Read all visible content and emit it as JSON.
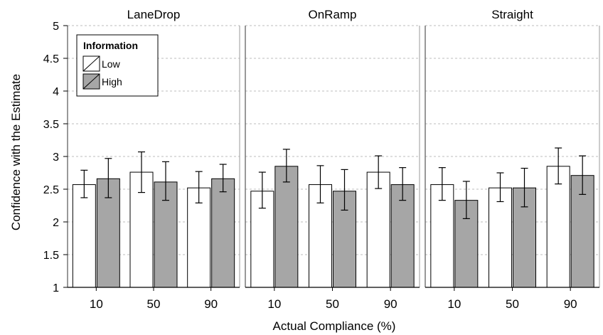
{
  "chart_data": {
    "type": "bar",
    "ylabel": "Confidence with the Estimate",
    "xlabel": "Actual Compliance (%)",
    "ylim": [
      1,
      5
    ],
    "yticks": [
      "1",
      "1.5",
      "2",
      "2.5",
      "3",
      "3.5",
      "4",
      "4.5",
      "5"
    ],
    "grid": true,
    "categories": [
      "10",
      "50",
      "90"
    ],
    "legend": {
      "title": "Information",
      "placement": "top-left",
      "entries": [
        "Low",
        "High"
      ]
    },
    "colors": {
      "Low": "#ffffff",
      "High": "#a6a6a6"
    },
    "facets": [
      {
        "title": "LaneDrop",
        "series": [
          {
            "name": "Low",
            "values": [
              2.57,
              2.76,
              2.52
            ],
            "err_low": [
              2.37,
              2.45,
              2.29
            ],
            "err_high": [
              2.79,
              3.07,
              2.77
            ]
          },
          {
            "name": "High",
            "values": [
              2.66,
              2.61,
              2.66
            ],
            "err_low": [
              2.37,
              2.33,
              2.46
            ],
            "err_high": [
              2.97,
              2.92,
              2.88
            ]
          }
        ]
      },
      {
        "title": "OnRamp",
        "series": [
          {
            "name": "Low",
            "values": [
              2.47,
              2.57,
              2.76
            ],
            "err_low": [
              2.21,
              2.29,
              2.51
            ],
            "err_high": [
              2.76,
              2.86,
              3.01
            ]
          },
          {
            "name": "High",
            "values": [
              2.85,
              2.47,
              2.57
            ],
            "err_low": [
              2.61,
              2.18,
              2.33
            ],
            "err_high": [
              3.11,
              2.8,
              2.83
            ]
          }
        ]
      },
      {
        "title": "Straight",
        "series": [
          {
            "name": "Low",
            "values": [
              2.57,
              2.52,
              2.85
            ],
            "err_low": [
              2.33,
              2.31,
              2.58
            ],
            "err_high": [
              2.83,
              2.75,
              3.13
            ]
          },
          {
            "name": "High",
            "values": [
              2.33,
              2.52,
              2.71
            ],
            "err_low": [
              2.05,
              2.23,
              2.42
            ],
            "err_high": [
              2.62,
              2.82,
              3.01
            ]
          }
        ]
      }
    ]
  }
}
